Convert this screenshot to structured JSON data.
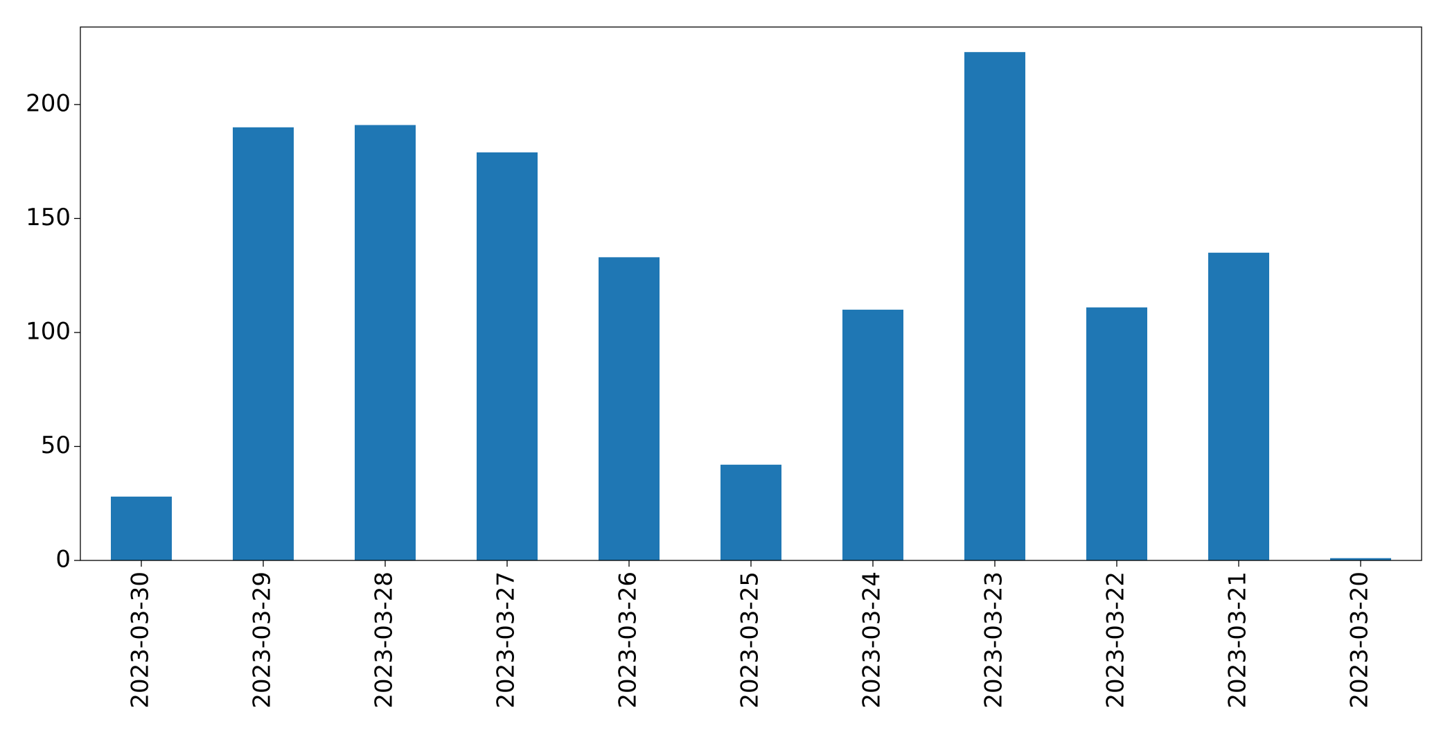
{
  "chart_data": {
    "type": "bar",
    "categories": [
      "2023-03-30",
      "2023-03-29",
      "2023-03-28",
      "2023-03-27",
      "2023-03-26",
      "2023-03-25",
      "2023-03-24",
      "2023-03-23",
      "2023-03-22",
      "2023-03-21",
      "2023-03-20"
    ],
    "values": [
      28,
      190,
      191,
      179,
      133,
      42,
      110,
      223,
      111,
      135,
      1
    ],
    "color": "#1f77b4",
    "ylim": [
      0,
      234
    ],
    "yticks": [
      0,
      50,
      100,
      150,
      200
    ],
    "grid": false
  }
}
